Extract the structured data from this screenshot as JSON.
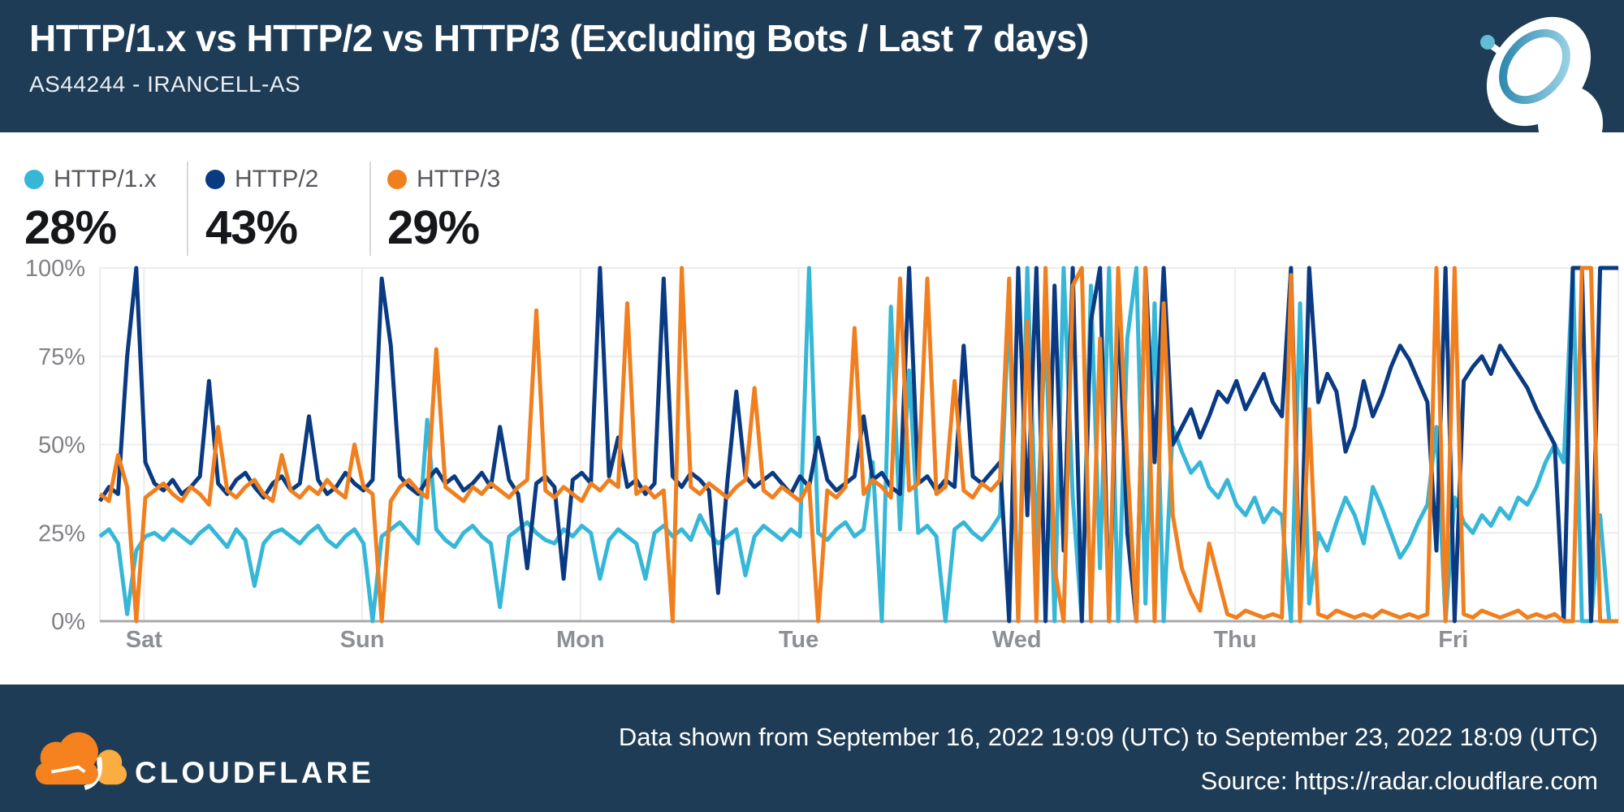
{
  "header": {
    "title": "HTTP/1.x vs HTTP/2 vs HTTP/3 (Excluding Bots / Last 7 days)",
    "subtitle": "AS44244 - IRANCELL-AS",
    "background": "#1e3c55",
    "icon": "satellite-dish-icon"
  },
  "footer": {
    "brand": "CLOUDFLARE",
    "logo_icon": "cloudflare-cloud-logo",
    "line1": "Data shown from September 16, 2022 19:09 (UTC) to September 23, 2022 18:09 (UTC)",
    "line2": "Source: https://radar.cloudflare.com",
    "background": "#1e3c55"
  },
  "colors": {
    "banner_bg": "#1e3c55",
    "grid_line": "#ececec",
    "axis_line": "#a8a8a8",
    "axis_text": "#7f8186",
    "logo_orange": "#f6821f",
    "logo_light_orange": "#fbad41"
  },
  "chart_data": {
    "type": "line",
    "title": "HTTP/1.x vs HTTP/2 vs HTTP/3 (Excluding Bots / Last 7 days)",
    "subtitle": "AS44244 - IRANCELL-AS",
    "time_span": "September 16, 2022 19:09 (UTC) to September 23, 2022 18:09 (UTC)",
    "x_axis": {
      "unit": "hours-since-start",
      "range_hours": [
        0,
        167
      ],
      "day_ticks": [
        {
          "label": "Sat",
          "hour": 4.85
        },
        {
          "label": "Sun",
          "hour": 28.85
        },
        {
          "label": "Mon",
          "hour": 52.85
        },
        {
          "label": "Tue",
          "hour": 76.85
        },
        {
          "label": "Wed",
          "hour": 100.85
        },
        {
          "label": "Thu",
          "hour": 124.85
        },
        {
          "label": "Fri",
          "hour": 148.85
        }
      ]
    },
    "y_axis": {
      "unit": "%",
      "min": 0,
      "max": 100,
      "ticks": [
        0,
        25,
        50,
        75,
        100
      ]
    },
    "grid": true,
    "legend_position": "top-left",
    "series": [
      {
        "key": "http1x",
        "name": "HTTP/1.x",
        "share": "28%",
        "color": "#36b7d8",
        "values": [
          24,
          26,
          22,
          2,
          20,
          24,
          25,
          23,
          26,
          24,
          22,
          25,
          27,
          24,
          21,
          26,
          23,
          10,
          22,
          25,
          26,
          24,
          22,
          25,
          27,
          23,
          21,
          24,
          26,
          22,
          0,
          24,
          26,
          28,
          25,
          22,
          57,
          26,
          23,
          21,
          25,
          27,
          24,
          22,
          4,
          24,
          26,
          28,
          25,
          23,
          22,
          26,
          24,
          27,
          25,
          12,
          23,
          26,
          24,
          22,
          12,
          25,
          27,
          24,
          26,
          23,
          30,
          25,
          22,
          24,
          26,
          13,
          24,
          27,
          25,
          23,
          26,
          24,
          100,
          25,
          23,
          26,
          28,
          24,
          26,
          45,
          0,
          89,
          26,
          71,
          25,
          27,
          24,
          0,
          26,
          28,
          25,
          23,
          26,
          30,
          90,
          0,
          100,
          20,
          85,
          0,
          100,
          35,
          0,
          95,
          15,
          100,
          0,
          80,
          100,
          5,
          90,
          0,
          55,
          48,
          42,
          45,
          38,
          35,
          40,
          33,
          30,
          35,
          28,
          32,
          30,
          0,
          90,
          5,
          25,
          20,
          28,
          35,
          30,
          22,
          38,
          32,
          25,
          18,
          22,
          28,
          33,
          55,
          0,
          35,
          28,
          25,
          30,
          27,
          32,
          29,
          35,
          33,
          38,
          45,
          50,
          45,
          100,
          0,
          0,
          30,
          0,
          0
        ]
      },
      {
        "key": "http2",
        "name": "HTTP/2",
        "share": "43%",
        "color": "#0a3a82",
        "values": [
          34,
          38,
          36,
          75,
          100,
          45,
          39,
          37,
          40,
          36,
          38,
          41,
          68,
          39,
          36,
          40,
          42,
          38,
          35,
          39,
          41,
          37,
          39,
          58,
          40,
          36,
          38,
          42,
          39,
          37,
          40,
          97,
          78,
          41,
          38,
          36,
          40,
          43,
          39,
          41,
          37,
          39,
          42,
          38,
          55,
          40,
          36,
          15,
          39,
          41,
          38,
          12,
          40,
          42,
          39,
          100,
          41,
          52,
          38,
          40,
          36,
          39,
          97,
          41,
          38,
          42,
          40,
          37,
          8,
          39,
          65,
          41,
          38,
          40,
          42,
          39,
          36,
          41,
          38,
          52,
          40,
          37,
          39,
          41,
          58,
          40,
          42,
          38,
          36,
          100,
          39,
          41,
          37,
          40,
          38,
          78,
          41,
          39,
          42,
          45,
          0,
          100,
          30,
          100,
          0,
          95,
          20,
          100,
          0,
          85,
          100,
          0,
          90,
          25,
          0,
          100,
          45,
          100,
          50,
          55,
          60,
          52,
          58,
          65,
          62,
          68,
          60,
          65,
          70,
          62,
          58,
          100,
          5,
          100,
          62,
          70,
          65,
          48,
          55,
          68,
          58,
          64,
          72,
          78,
          74,
          68,
          62,
          20,
          100,
          0,
          68,
          72,
          75,
          70,
          78,
          74,
          70,
          66,
          60,
          55,
          50,
          0,
          100,
          100,
          0,
          100,
          100,
          100
        ]
      },
      {
        "key": "http3",
        "name": "HTTP/3",
        "share": "29%",
        "color": "#f0801f",
        "values": [
          36,
          34,
          47,
          38,
          0,
          35,
          37,
          39,
          36,
          34,
          38,
          36,
          33,
          55,
          37,
          35,
          38,
          40,
          36,
          34,
          47,
          37,
          35,
          38,
          36,
          40,
          37,
          35,
          50,
          38,
          36,
          0,
          34,
          38,
          40,
          37,
          35,
          77,
          38,
          36,
          34,
          38,
          36,
          39,
          37,
          35,
          38,
          40,
          88,
          37,
          35,
          38,
          36,
          34,
          39,
          37,
          40,
          38,
          90,
          36,
          38,
          35,
          37,
          0,
          100,
          38,
          36,
          39,
          37,
          35,
          38,
          40,
          66,
          37,
          35,
          38,
          36,
          34,
          39,
          0,
          37,
          35,
          38,
          83,
          36,
          40,
          38,
          35,
          97,
          37,
          39,
          97,
          36,
          38,
          68,
          37,
          35,
          39,
          37,
          40,
          97,
          0,
          85,
          0,
          100,
          15,
          0,
          95,
          100,
          0,
          80,
          0,
          100,
          45,
          0,
          100,
          0,
          90,
          30,
          15,
          8,
          3,
          22,
          12,
          2,
          1,
          3,
          2,
          1,
          2,
          1,
          98,
          0,
          60,
          2,
          1,
          3,
          2,
          1,
          2,
          1,
          3,
          2,
          1,
          2,
          1,
          2,
          100,
          0,
          100,
          2,
          1,
          3,
          2,
          1,
          2,
          3,
          1,
          2,
          1,
          2,
          0,
          0,
          100,
          100,
          0,
          0,
          0
        ]
      }
    ]
  }
}
